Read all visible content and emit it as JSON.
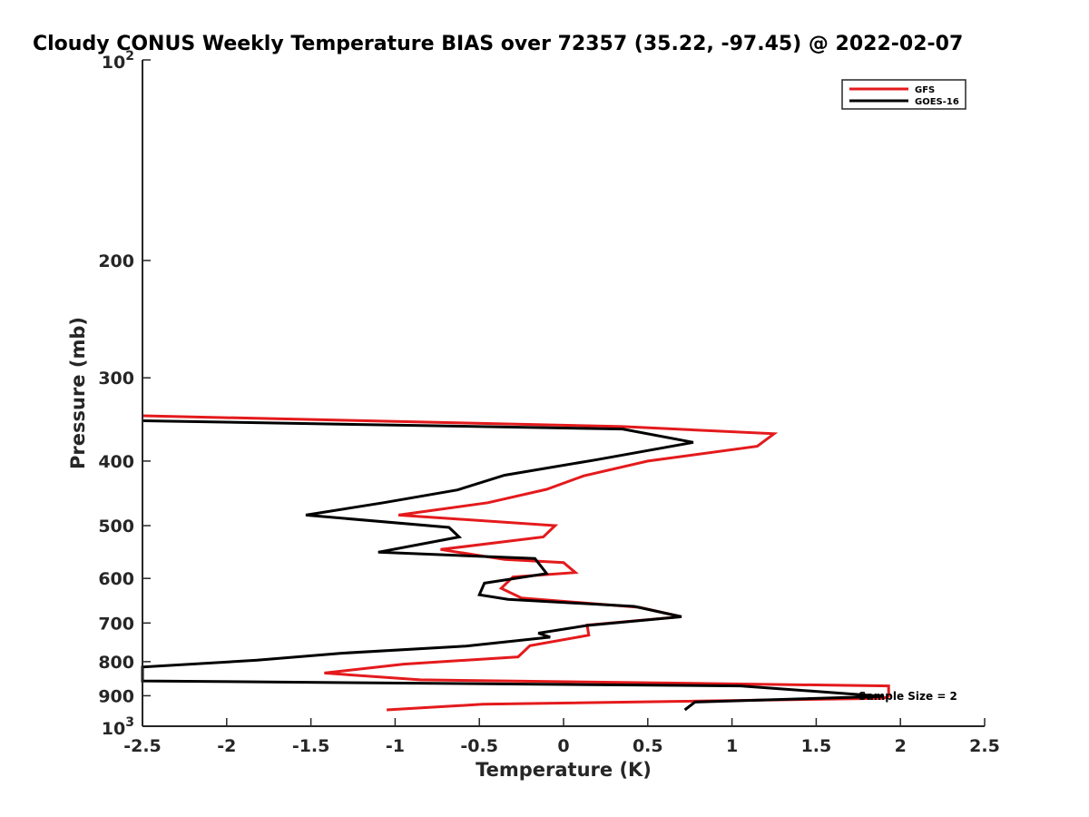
{
  "chart_data": {
    "type": "line",
    "title": "Cloudy CONUS Weekly Temperature BIAS over 72357 (35.22, -97.45) @ 2022-02-07",
    "xlabel": "Temperature (K)",
    "ylabel": "Pressure (mb)",
    "xlim": [
      -2.5,
      2.5
    ],
    "ylim": [
      100,
      1000
    ],
    "y_scale": "log",
    "y_reversed": true,
    "x_ticks": [
      "-2.5",
      "-2",
      "-1.5",
      "-1",
      "-0.5",
      "0",
      "0.5",
      "1",
      "1.5",
      "2",
      "2.5"
    ],
    "x_tick_values": [
      -2.5,
      -2,
      -1.5,
      -1,
      -0.5,
      0,
      0.5,
      1,
      1.5,
      2,
      2.5
    ],
    "y_ticks": [
      {
        "value": 200,
        "label": "200"
      },
      {
        "value": 300,
        "label": "300"
      },
      {
        "value": 400,
        "label": "400"
      },
      {
        "value": 500,
        "label": "500"
      },
      {
        "value": 600,
        "label": "600"
      },
      {
        "value": 700,
        "label": "700"
      },
      {
        "value": 800,
        "label": "800"
      },
      {
        "value": 900,
        "label": "900"
      }
    ],
    "y_tick_power_labels": [
      {
        "value": 100,
        "base": "10",
        "exp": "2"
      },
      {
        "value": 1000,
        "base": "10",
        "exp": "3"
      }
    ],
    "grid": false,
    "legend": {
      "position": "top-right"
    },
    "annotation": "Sample Size = 2",
    "series": [
      {
        "name": "GFS",
        "color": "#e41a1c",
        "points": [
          [
            -2.5,
            342
          ],
          [
            0.35,
            355
          ],
          [
            1.25,
            364
          ],
          [
            1.15,
            380
          ],
          [
            0.5,
            400
          ],
          [
            0.12,
            421
          ],
          [
            -0.1,
            441
          ],
          [
            -0.45,
            462
          ],
          [
            -0.98,
            482
          ],
          [
            -0.05,
            500
          ],
          [
            -0.12,
            520
          ],
          [
            -0.73,
            543
          ],
          [
            -0.35,
            562
          ],
          [
            0,
            568
          ],
          [
            0.07,
            588
          ],
          [
            -0.3,
            597
          ],
          [
            -0.37,
            621
          ],
          [
            -0.25,
            642
          ],
          [
            0.45,
            663
          ],
          [
            0.7,
            685
          ],
          [
            0.14,
            705
          ],
          [
            0.15,
            730
          ],
          [
            -0.2,
            757
          ],
          [
            -0.27,
            787
          ],
          [
            -0.95,
            807
          ],
          [
            -1.42,
            832
          ],
          [
            -0.85,
            852
          ],
          [
            1.93,
            870
          ],
          [
            1.93,
            902
          ],
          [
            1.9,
            908
          ],
          [
            -0.48,
            927
          ],
          [
            -1.05,
            945
          ]
        ]
      },
      {
        "name": "GOES-16",
        "color": "#000000",
        "points": [
          [
            -2.5,
            348
          ],
          [
            0.35,
            358
          ],
          [
            0.77,
            375
          ],
          [
            0.2,
            398
          ],
          [
            -0.35,
            420
          ],
          [
            -0.63,
            442
          ],
          [
            -1.07,
            462
          ],
          [
            -1.53,
            482
          ],
          [
            -0.68,
            503
          ],
          [
            -0.62,
            520
          ],
          [
            -1.1,
            548
          ],
          [
            -0.17,
            560
          ],
          [
            -0.1,
            590
          ],
          [
            -0.47,
            610
          ],
          [
            -0.5,
            635
          ],
          [
            -0.33,
            645
          ],
          [
            0.42,
            661
          ],
          [
            0.7,
            685
          ],
          [
            0.14,
            706
          ],
          [
            -0.15,
            725
          ],
          [
            -0.08,
            735
          ],
          [
            -0.58,
            758
          ],
          [
            -1.32,
            777
          ],
          [
            -1.82,
            796
          ],
          [
            -2.5,
            815
          ],
          [
            -2.5,
            855
          ],
          [
            1.05,
            870
          ],
          [
            1.9,
            902
          ],
          [
            0.78,
            920
          ],
          [
            0.72,
            945
          ]
        ]
      }
    ]
  }
}
